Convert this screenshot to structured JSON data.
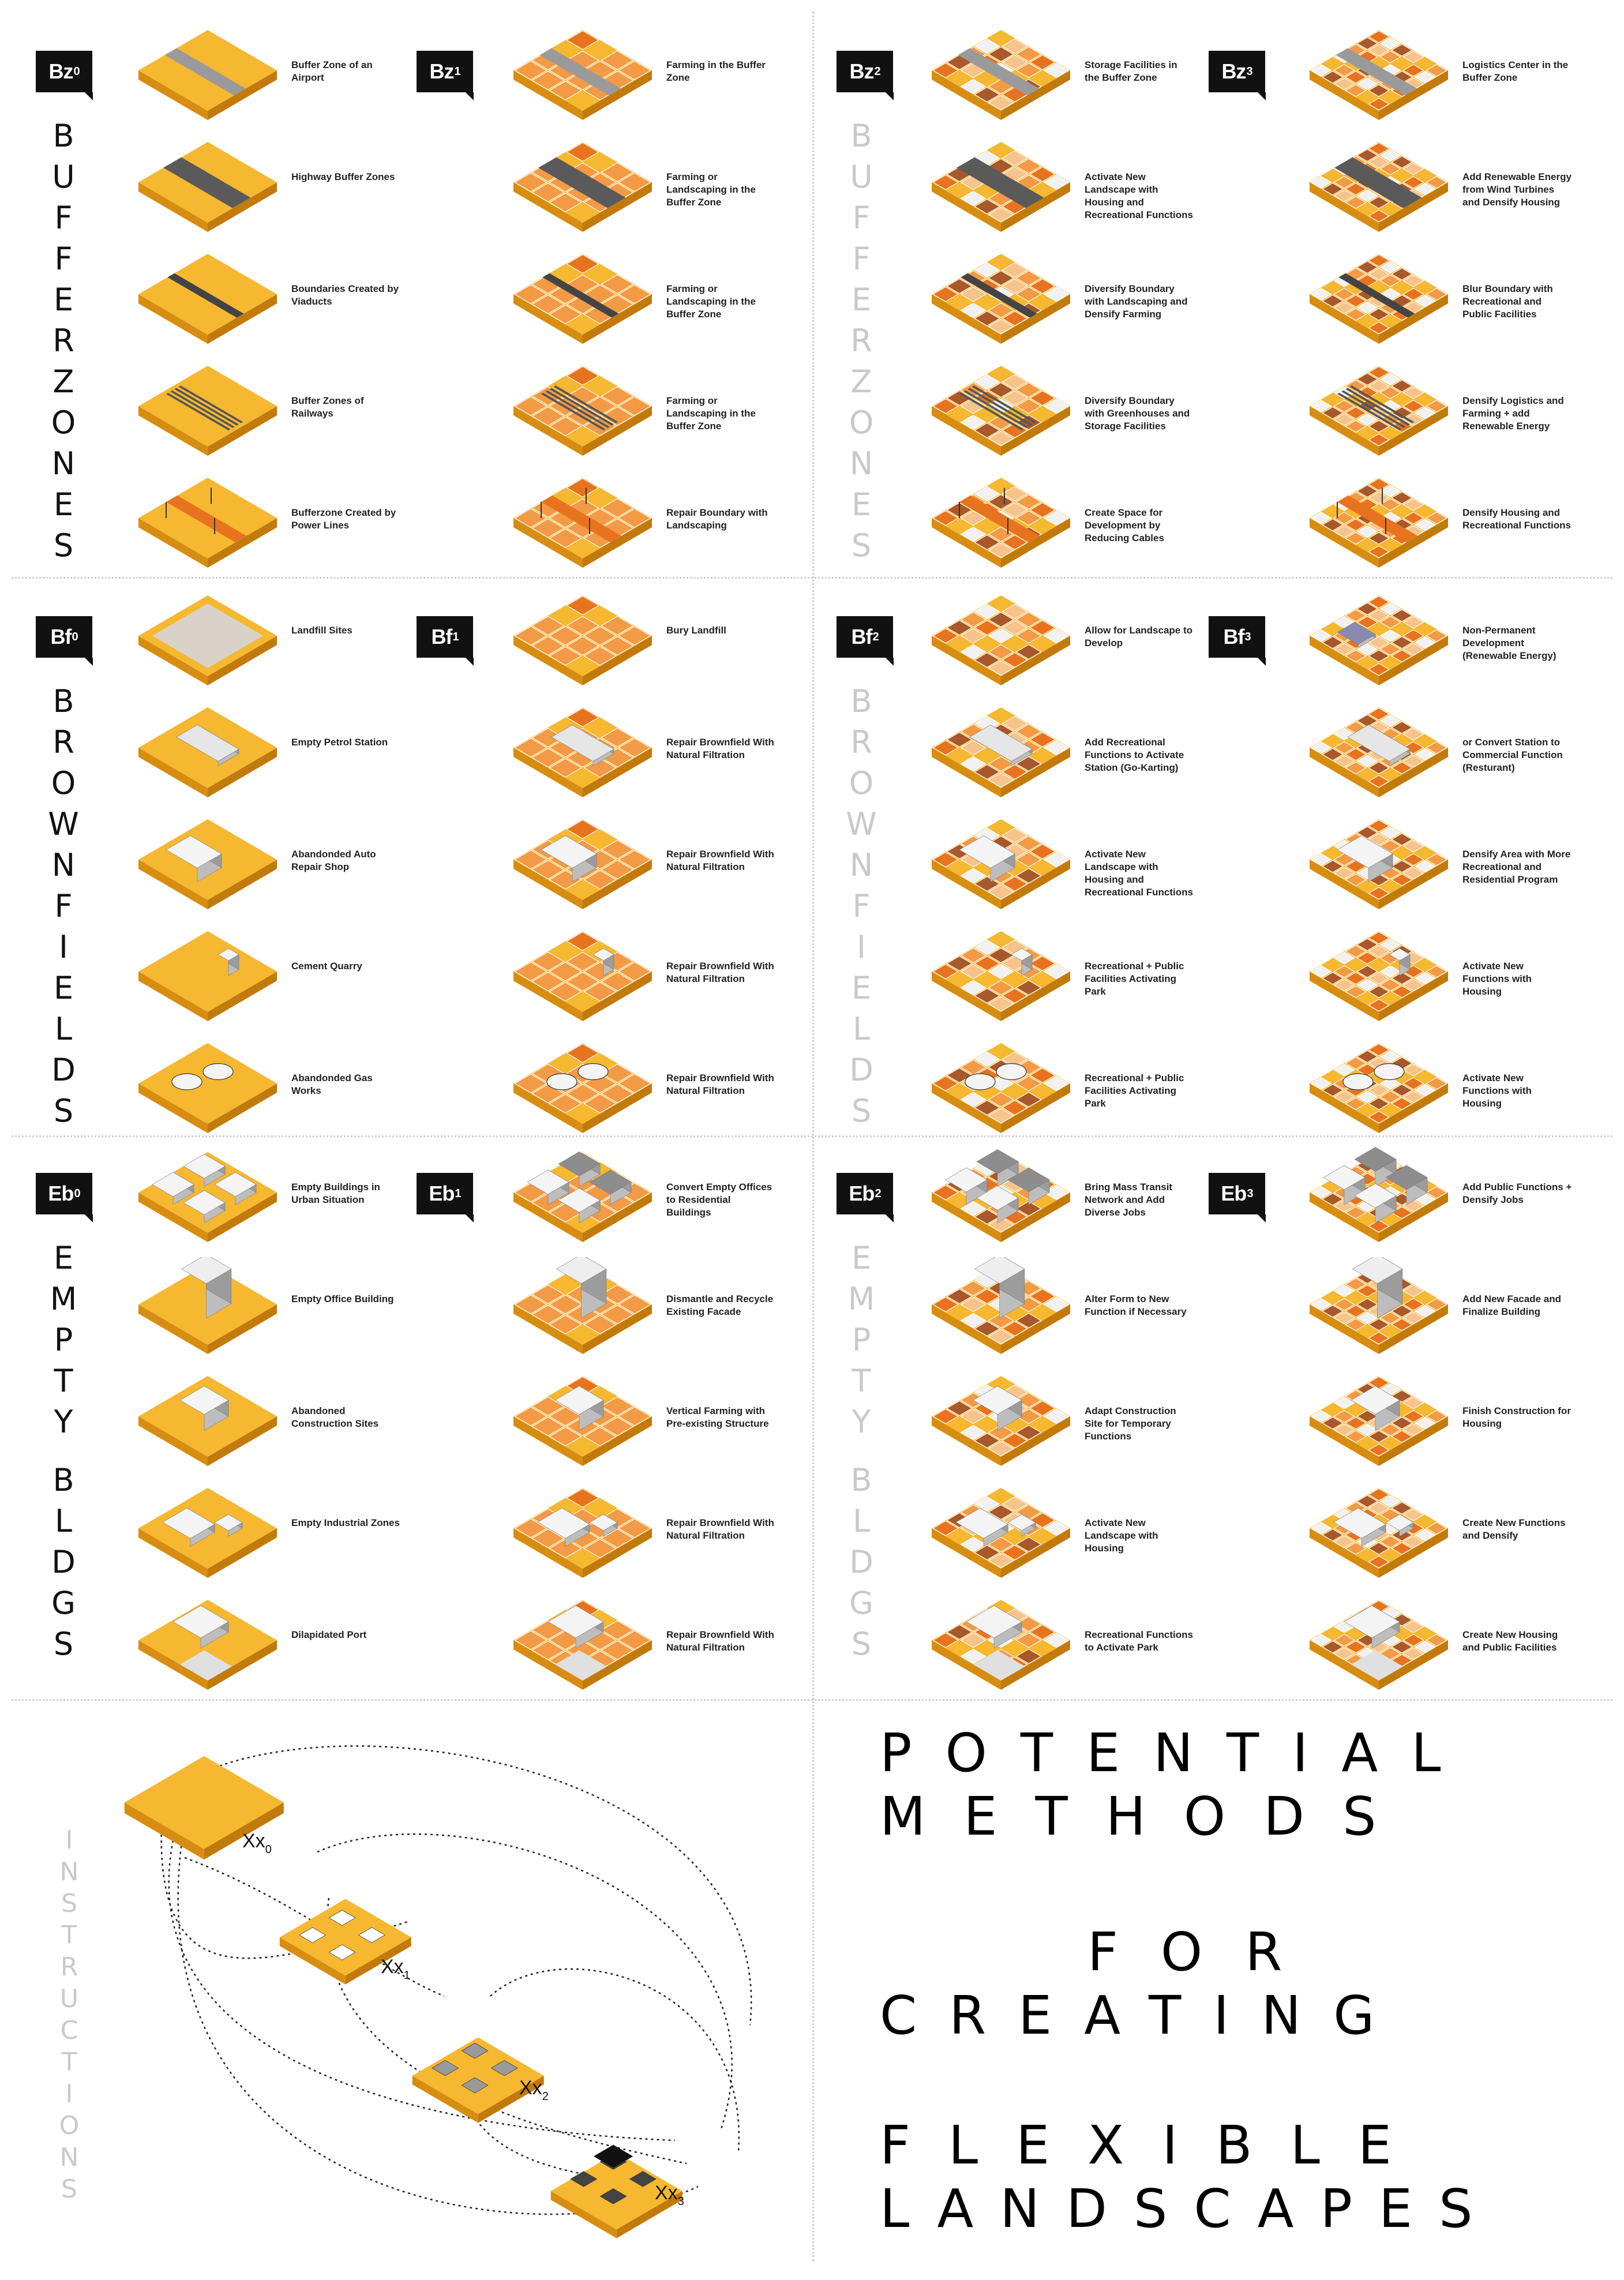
{
  "palette": {
    "tile_base": "#f6b830",
    "tile_side": "#d68d12",
    "tile_top_light": "#f9c94e",
    "orange_dark": "#e8731f",
    "orange_mid": "#f29a45",
    "orange_light": "#f6c38c",
    "brown": "#a8582a",
    "grey_road": "#5a5a5a",
    "white_block": "#f1f1f1",
    "badge_bg": "#111111",
    "word_dark": "#111111",
    "word_light": "#c9c9c9"
  },
  "sections": [
    {
      "id": "buffer-zones",
      "word": "BUFFERZONES",
      "columns": [
        {
          "badge": "Bz",
          "sub": "0",
          "captions": [
            "Buffer Zone of an Airport",
            "Highway Buffer Zones",
            "Boundaries Created by Viaducts",
            "Buffer Zones of Railways",
            "Bufferzone Created by Power Lines"
          ],
          "icons": [
            "airport",
            "highway",
            "viaduct",
            "railway",
            "powerlines"
          ]
        },
        {
          "badge": "Bz",
          "sub": "1",
          "captions": [
            "Farming in the Buffer Zone",
            "Farming or Landscaping in the Buffer Zone",
            "Farming or Landscaping in the Buffer Zone",
            "Farming or Landscaping in the Buffer Zone",
            "Repair Boundary with Landscaping"
          ],
          "icons": [
            "airport",
            "highway",
            "viaduct",
            "railway",
            "powerlines"
          ]
        },
        {
          "badge": "Bz",
          "sub": "2",
          "captions": [
            "Storage Facilities in the Buffer Zone",
            "Activate New Landscape with Housing and Recreational Functions",
            "Diversify Boundary with Landscaping and Densify Farming",
            "Diversify Boundary with Greenhouses and Storage Facilities",
            "Create Space for Development by Reducing Cables"
          ],
          "icons": [
            "airport",
            "highway",
            "viaduct",
            "railway",
            "powerlines"
          ]
        },
        {
          "badge": "Bz",
          "sub": "3",
          "captions": [
            "Logistics Center in the Buffer Zone",
            "Add Renewable Energy from Wind Turbines and Densify Housing",
            "Blur Boundary with Recreational and Public Facilities",
            "Densify Logistics and Farming + add Renewable Energy",
            "Densify Housing and Recreational Functions"
          ],
          "icons": [
            "airport",
            "highway",
            "viaduct",
            "railway",
            "powerlines"
          ]
        }
      ]
    },
    {
      "id": "brownfields",
      "word": "BROWNFIELDS",
      "columns": [
        {
          "badge": "Bf",
          "sub": "0",
          "captions": [
            "Landfill Sites",
            "Empty Petrol Station",
            "Abandonded Auto Repair Shop",
            "Cement Quarry",
            "Abandonded Gas Works"
          ],
          "icons": [
            "landfill",
            "petrol",
            "autorepair",
            "quarry",
            "gasworks"
          ]
        },
        {
          "badge": "Bf",
          "sub": "1",
          "captions": [
            "Bury Landfill",
            "Repair Brownfield With Natural Filtration",
            "Repair Brownfield With Natural Filtration",
            "Repair Brownfield With Natural Filtration",
            "Repair Brownfield With Natural Filtration"
          ],
          "icons": [
            "landfill",
            "petrol",
            "autorepair",
            "quarry",
            "gasworks"
          ]
        },
        {
          "badge": "Bf",
          "sub": "2",
          "captions": [
            "Allow for Landscape to Develop",
            "Add Recreational Functions to Activate Station (Go-Karting)",
            "Activate New Landscape with Housing and Recreational Functions",
            "Recreational + Public Facilities Activating Park",
            "Recreational + Public Facilities Activating Park"
          ],
          "icons": [
            "landfill",
            "petrol",
            "autorepair",
            "quarry",
            "gasworks"
          ]
        },
        {
          "badge": "Bf",
          "sub": "3",
          "captions": [
            "Non-Permanent Development (Renewable Energy)",
            "or Convert Station to Commercial Function (Resturant)",
            "Densify Area with More Recreational and Residential Program",
            "Activate New Functions with Housing",
            "Activate New Functions with Housing"
          ],
          "icons": [
            "landfill",
            "petrol",
            "autorepair",
            "quarry",
            "gasworks"
          ]
        }
      ]
    },
    {
      "id": "empty-bldgs",
      "word": "EMPTY BLDGS",
      "columns": [
        {
          "badge": "Eb",
          "sub": "0",
          "captions": [
            "Empty Buildings in Urban Situation",
            "Empty Office Building",
            "Abandoned Construction Sites",
            "Empty Industrial Zones",
            "Dilapidated Port"
          ],
          "icons": [
            "urban",
            "office",
            "construction",
            "industrial",
            "port"
          ]
        },
        {
          "badge": "Eb",
          "sub": "1",
          "captions": [
            "Convert Empty Offices to Residential Buildings",
            "Dismantle and Recycle Existing Facade",
            "Vertical Farming with Pre-existing Structure",
            "Repair Brownfield With Natural Filtration",
            "Repair Brownfield With Natural Filtration"
          ],
          "icons": [
            "urban",
            "office",
            "construction",
            "industrial",
            "port"
          ]
        },
        {
          "badge": "Eb",
          "sub": "2",
          "captions": [
            "Bring Mass Transit Network and Add Diverse Jobs",
            "Alter Form to New Function if Necessary",
            "Adapt Construction Site for Temporary Functions",
            "Activate New Landscape with Housing",
            "Recreational Functions to Activate Park"
          ],
          "icons": [
            "urban",
            "office",
            "construction",
            "industrial",
            "port"
          ]
        },
        {
          "badge": "Eb",
          "sub": "3",
          "captions": [
            "Add Public Functions + Densify Jobs",
            "Add New Facade and Finalize Building",
            "Finish Construction for Housing",
            "Create New Functions and Densify",
            "Create New Housing and Public Facilities"
          ],
          "icons": [
            "urban",
            "office",
            "construction",
            "industrial",
            "port"
          ]
        }
      ]
    }
  ],
  "instructions": {
    "word": "INSTRUCTIONS",
    "levels": [
      {
        "label": "Xx",
        "sub": "0"
      },
      {
        "label": "Xx",
        "sub": "1"
      },
      {
        "label": "Xx",
        "sub": "2"
      },
      {
        "label": "Xx",
        "sub": "3"
      }
    ]
  },
  "title_lines": [
    "POTENTIAL",
    "METHODS",
    "FOR",
    "CREATING",
    "FLEXIBLE",
    "LANDSCAPES"
  ]
}
